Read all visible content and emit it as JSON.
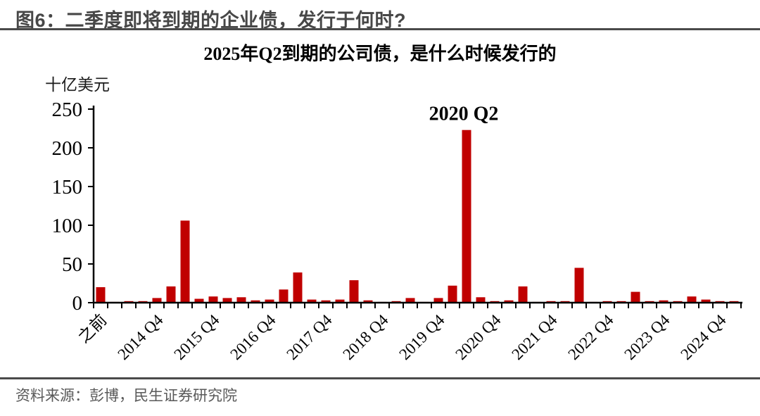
{
  "header": {
    "title": "图6：二季度即将到期的企业债，发行于何时?"
  },
  "footer": {
    "source": "资料来源：彭博，民生证券研究院"
  },
  "colors": {
    "bar": "#c00000",
    "axis": "#000000",
    "header_text": "#474747",
    "divider": "#4a4a4a",
    "source_text": "#595959"
  },
  "chart_data": {
    "type": "bar",
    "title": "2025年Q2到期的公司债，是什么时候发行的",
    "ylabel": "十亿美元",
    "xlabel": "",
    "ylim": [
      0,
      250
    ],
    "yticks": [
      0,
      50,
      100,
      150,
      200,
      250
    ],
    "grid": false,
    "legend": null,
    "bar_color": "#c00000",
    "xtick_label_every": 4,
    "visible_xtick_labels": [
      "之前",
      "2014 Q4",
      "2015 Q4",
      "2016 Q4",
      "2017 Q4",
      "2018 Q4",
      "2019 Q4",
      "2020 Q4",
      "2021 Q4",
      "2022 Q4",
      "2023 Q4",
      "2024 Q4"
    ],
    "annotation": {
      "text": "2020 Q2",
      "category": "2020 Q2"
    },
    "categories": [
      "之前",
      "2014 Q1",
      "2014 Q2",
      "2014 Q3",
      "2014 Q4",
      "2015 Q1",
      "2015 Q2",
      "2015 Q3",
      "2015 Q4",
      "2016 Q1",
      "2016 Q2",
      "2016 Q3",
      "2016 Q4",
      "2017 Q1",
      "2017 Q2",
      "2017 Q3",
      "2017 Q4",
      "2018 Q1",
      "2018 Q2",
      "2018 Q3",
      "2018 Q4",
      "2019 Q1",
      "2019 Q2",
      "2019 Q3",
      "2019 Q4",
      "2020 Q1",
      "2020 Q2",
      "2020 Q3",
      "2020 Q4",
      "2021 Q1",
      "2021 Q2",
      "2021 Q3",
      "2021 Q4",
      "2022 Q1",
      "2022 Q2",
      "2022 Q3",
      "2022 Q4",
      "2023 Q1",
      "2023 Q2",
      "2023 Q3",
      "2023 Q4",
      "2024 Q1",
      "2024 Q2",
      "2024 Q3",
      "2024 Q4",
      "2025 Q1"
    ],
    "values": [
      20,
      1,
      2,
      2,
      6,
      21,
      106,
      5,
      8,
      6,
      7,
      3,
      4,
      17,
      39,
      4,
      3,
      4,
      29,
      3,
      1,
      2,
      6,
      1,
      6,
      22,
      223,
      7,
      2,
      3,
      21,
      1,
      2,
      2,
      45,
      1,
      2,
      2,
      14,
      2,
      3,
      2,
      8,
      4,
      2,
      2
    ]
  }
}
